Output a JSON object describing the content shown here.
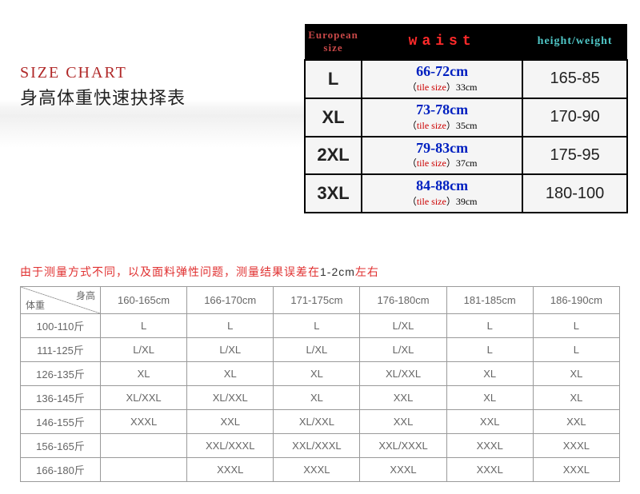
{
  "title": {
    "en_text": "SIZE CHART",
    "en_color": "#b02828",
    "en_fontsize": 20,
    "cn_text": "身高体重快速抉择表",
    "cn_color": "#222222",
    "cn_fontsize": 22
  },
  "top_table": {
    "headers": {
      "size": "European size",
      "waist": "waist",
      "height_weight": "height/weight"
    },
    "header_bg": "#000000",
    "tile_label": "tile size",
    "rows": [
      {
        "size": "L",
        "waist_range": "66-72cm",
        "tile_cm": "33cm",
        "hw": "165-85"
      },
      {
        "size": "XL",
        "waist_range": "73-78cm",
        "tile_cm": "35cm",
        "hw": "170-90"
      },
      {
        "size": "2XL",
        "waist_range": "79-83cm",
        "tile_cm": "37cm",
        "hw": "175-95"
      },
      {
        "size": "3XL",
        "waist_range": "84-88cm",
        "tile_cm": "39cm",
        "hw": "180-100"
      }
    ],
    "colors": {
      "size_header": "#c84848",
      "waist_header": "#ff2a2a",
      "hw_header": "#4fc6c6",
      "waist_main": "#0020c0",
      "tile_label": "#cc0000",
      "cell_bg": "#f5f5f5",
      "border": "#000000"
    }
  },
  "note": {
    "red_text": "由于测量方式不同，以及面料弹性问题，测量结果误差在",
    "black_text": "1-2cm",
    "red_text2": "左右",
    "red_color": "#e03030",
    "black_color": "#333333"
  },
  "bottom_table": {
    "corner": {
      "height_label": "身高",
      "weight_label": "体重"
    },
    "height_cols": [
      "160-165cm",
      "166-170cm",
      "171-175cm",
      "176-180cm",
      "181-185cm",
      "186-190cm"
    ],
    "weight_rows": [
      {
        "label": "100-110斤",
        "cells": [
          "L",
          "L",
          "L",
          "L/XL",
          "L",
          "L"
        ]
      },
      {
        "label": "111-125斤",
        "cells": [
          "L/XL",
          "L/XL",
          "L/XL",
          "L/XL",
          "L",
          "L"
        ]
      },
      {
        "label": "126-135斤",
        "cells": [
          "XL",
          "XL",
          "XL",
          "XL/XXL",
          "XL",
          "XL"
        ]
      },
      {
        "label": "136-145斤",
        "cells": [
          "XL/XXL",
          "XL/XXL",
          "XL",
          "XXL",
          "XL",
          "XL"
        ]
      },
      {
        "label": "146-155斤",
        "cells": [
          "XXXL",
          "XXL",
          "XL/XXL",
          "XXL",
          "XXL",
          "XXL"
        ]
      },
      {
        "label": "156-165斤",
        "cells": [
          "",
          "XXL/XXXL",
          "XXL/XXXL",
          "XXL/XXXL",
          "XXXL",
          "XXXL"
        ]
      },
      {
        "label": "166-180斤",
        "cells": [
          "",
          "XXXL",
          "XXXL",
          "XXXL",
          "XXXL",
          "XXXL"
        ]
      }
    ],
    "colors": {
      "border": "#9a9a9a",
      "text": "#666666"
    }
  }
}
